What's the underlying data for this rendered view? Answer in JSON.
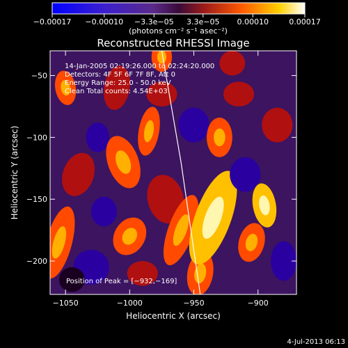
{
  "chart_data": {
    "type": "heatmap",
    "title": "Reconstructed RHESSI Image",
    "xlabel": "Heliocentric X (arcsec)",
    "ylabel": "Heliocentric Y (arcsec)",
    "xlim": [
      -1062,
      -870
    ],
    "ylim": [
      -227,
      -30
    ],
    "x_ticks": [
      -1050,
      -1000,
      -950,
      -900
    ],
    "x_tick_labels": [
      "−1050",
      "−1000",
      "−950",
      "−900"
    ],
    "y_ticks": [
      -50,
      -100,
      -150,
      -200
    ],
    "y_tick_labels": [
      "−50",
      "−100",
      "−150",
      "−200"
    ],
    "colorbar": {
      "ticks": [
        -0.00017,
        -0.0001,
        -3.3e-05,
        3.3e-05,
        0.0001,
        0.00017
      ],
      "tick_labels": [
        "−0.00017",
        "−0.00010",
        "−3.3e−05",
        "3.3e−05",
        "0.00010",
        "0.00017"
      ],
      "range": [
        -0.00017,
        0.00017
      ],
      "units_line": "(photons cm⁻² s⁻¹ asec⁻²)"
    },
    "annotations": {
      "time": "14-Jan-2005 02:19:26.000 to 02:24:20.000",
      "detectors": "Detectors: 4F 5F 6F 7F 8F, Att 0",
      "energy": "Energy Range: 25.0 - 50.0 keV",
      "method": "Clean    Total counts: 4.54E+03",
      "peak": "Position of Peak = [−932,−169]"
    },
    "peak": {
      "x": -932,
      "y": -169
    },
    "limb": [
      [
        -975,
        -30
      ],
      [
        -960,
        -120
      ],
      [
        -945,
        -227
      ]
    ],
    "grid": false,
    "colors": {
      "background": "#000000",
      "limb": "#ffffff"
    }
  },
  "footer": {
    "date": "4-Jul-2013 06:13"
  }
}
